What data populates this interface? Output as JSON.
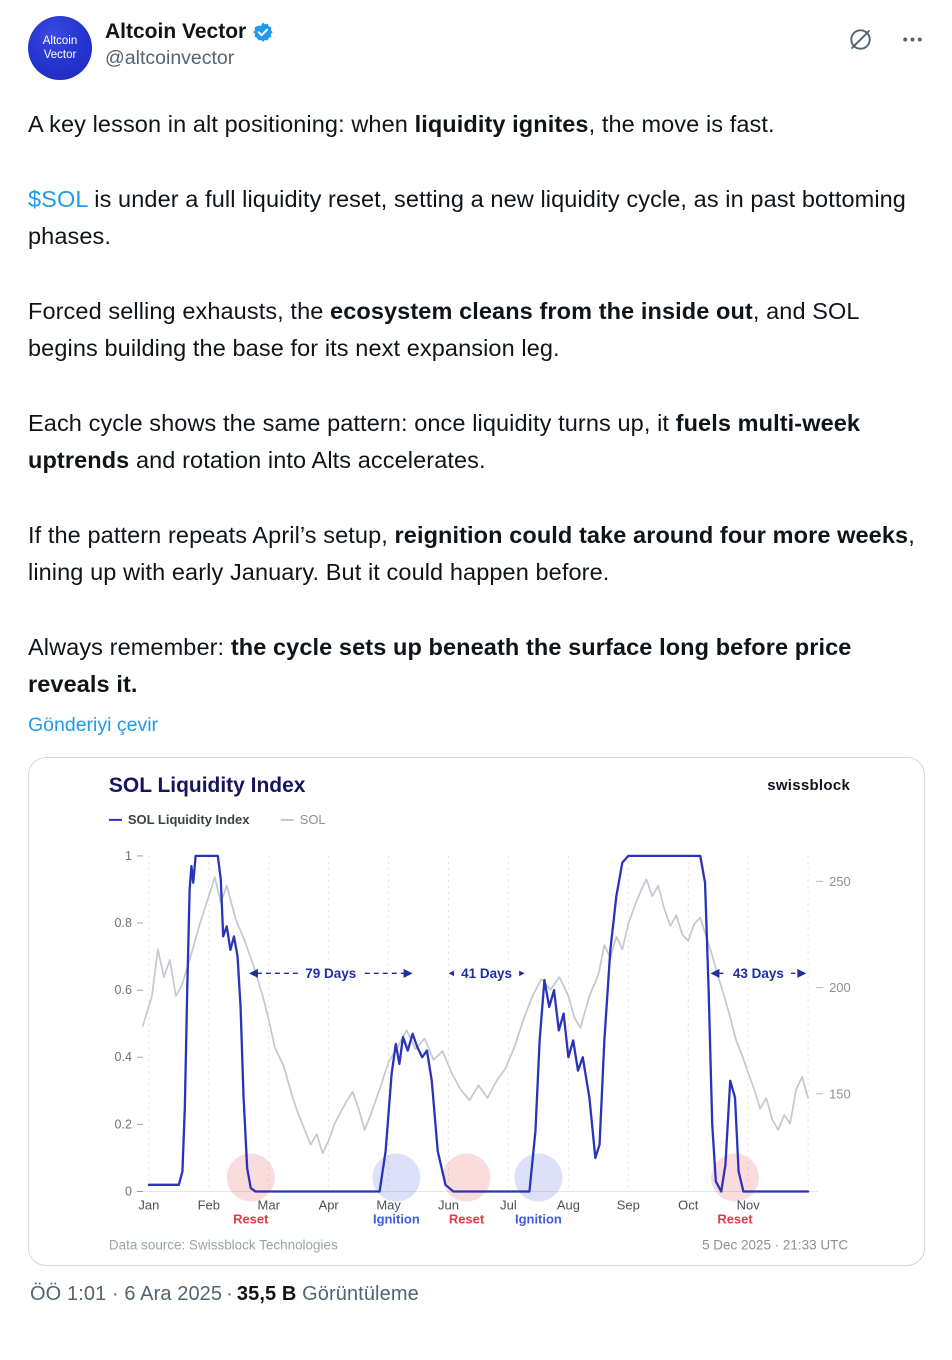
{
  "header": {
    "display_name": "Altcoin Vector",
    "handle": "@altcoinvector",
    "avatar_text_line1": "Altcoin",
    "avatar_text_line2": "Vector"
  },
  "post": {
    "paragraphs": [
      [
        {
          "t": "A key lesson in alt positioning: when "
        },
        {
          "t": "liquidity ignites",
          "b": 1
        },
        {
          "t": ", the move is fast."
        }
      ],
      [
        {
          "t": "$SOL",
          "link": 1
        },
        {
          "t": " is under a full liquidity reset, setting a new liquidity cycle, as in past bottoming phases."
        }
      ],
      [
        {
          "t": "Forced selling exhausts, the "
        },
        {
          "t": "ecosystem cleans from the inside out",
          "b": 1
        },
        {
          "t": ", and SOL begins building the base for its next expansion leg."
        }
      ],
      [
        {
          "t": "Each cycle shows the same pattern: once liquidity turns up, it "
        },
        {
          "t": "fuels multi-week uptrends",
          "b": 1
        },
        {
          "t": " and rotation into Alts accelerates."
        }
      ],
      [
        {
          "t": "If the pattern repeats April’s setup, "
        },
        {
          "t": "reignition could take around four more weeks",
          "b": 1
        },
        {
          "t": ", lining up with early January. But it could happen before."
        }
      ],
      [
        {
          "t": "Always remember: "
        },
        {
          "t": "the cycle sets up beneath the surface long before price reveals it.",
          "b": 1
        }
      ]
    ],
    "translate_link": "Gönderiyi çevir"
  },
  "chart_data": {
    "type": "line",
    "title": "SOL Liquidity Index",
    "brand": "swissblock",
    "legend": [
      "SOL Liquidity Index",
      "SOL"
    ],
    "x_axis": {
      "months": [
        "Jan",
        "Feb",
        "Mar",
        "Apr",
        "May",
        "Jun",
        "Jul",
        "Aug",
        "Sep",
        "Oct",
        "Nov"
      ]
    },
    "y_left": {
      "ticks": [
        0,
        0.2,
        0.4,
        0.6,
        0.8,
        1
      ],
      "range": [
        0,
        1
      ]
    },
    "y_right": {
      "ticks": [
        150,
        200,
        250
      ],
      "domain": [
        104,
        262
      ]
    },
    "series": [
      {
        "name": "SOL Liquidity Index",
        "axis": "left",
        "color": "#2a34b8",
        "points": [
          [
            0,
            0.02
          ],
          [
            0.5,
            0.02
          ],
          [
            0.56,
            0.06
          ],
          [
            0.6,
            0.25
          ],
          [
            0.64,
            0.6
          ],
          [
            0.68,
            0.9
          ],
          [
            0.71,
            0.97
          ],
          [
            0.74,
            0.92
          ],
          [
            0.78,
            1
          ],
          [
            1.15,
            1
          ],
          [
            1.2,
            0.93
          ],
          [
            1.24,
            0.76
          ],
          [
            1.3,
            0.79
          ],
          [
            1.36,
            0.72
          ],
          [
            1.42,
            0.76
          ],
          [
            1.48,
            0.7
          ],
          [
            1.53,
            0.55
          ],
          [
            1.58,
            0.28
          ],
          [
            1.64,
            0.07
          ],
          [
            1.7,
            0.01
          ],
          [
            1.78,
            0
          ],
          [
            3.85,
            0
          ],
          [
            3.95,
            0.12
          ],
          [
            4.05,
            0.35
          ],
          [
            4.12,
            0.44
          ],
          [
            4.18,
            0.38
          ],
          [
            4.24,
            0.46
          ],
          [
            4.32,
            0.42
          ],
          [
            4.4,
            0.47
          ],
          [
            4.48,
            0.43
          ],
          [
            4.56,
            0.4
          ],
          [
            4.64,
            0.42
          ],
          [
            4.72,
            0.33
          ],
          [
            4.82,
            0.12
          ],
          [
            4.95,
            0.02
          ],
          [
            5.08,
            0
          ],
          [
            6.35,
            0
          ],
          [
            6.45,
            0.18
          ],
          [
            6.52,
            0.45
          ],
          [
            6.6,
            0.63
          ],
          [
            6.68,
            0.55
          ],
          [
            6.76,
            0.6
          ],
          [
            6.84,
            0.48
          ],
          [
            6.92,
            0.53
          ],
          [
            7,
            0.4
          ],
          [
            7.08,
            0.45
          ],
          [
            7.16,
            0.36
          ],
          [
            7.24,
            0.4
          ],
          [
            7.35,
            0.28
          ],
          [
            7.45,
            0.1
          ],
          [
            7.52,
            0.14
          ],
          [
            7.6,
            0.45
          ],
          [
            7.7,
            0.72
          ],
          [
            7.8,
            0.88
          ],
          [
            7.9,
            0.98
          ],
          [
            8,
            1
          ],
          [
            9.2,
            1
          ],
          [
            9.28,
            0.92
          ],
          [
            9.34,
            0.6
          ],
          [
            9.4,
            0.2
          ],
          [
            9.46,
            0.03
          ],
          [
            9.55,
            0
          ],
          [
            9.62,
            0.08
          ],
          [
            9.7,
            0.33
          ],
          [
            9.78,
            0.28
          ],
          [
            9.84,
            0.06
          ],
          [
            9.92,
            0
          ],
          [
            11,
            0
          ]
        ]
      },
      {
        "name": "SOL",
        "axis": "right",
        "color": "#c3c7d1",
        "points": [
          [
            -0.1,
            182
          ],
          [
            0.05,
            196
          ],
          [
            0.15,
            218
          ],
          [
            0.25,
            205
          ],
          [
            0.35,
            213
          ],
          [
            0.45,
            196
          ],
          [
            0.55,
            201
          ],
          [
            0.7,
            215
          ],
          [
            0.85,
            230
          ],
          [
            1,
            243
          ],
          [
            1.1,
            252
          ],
          [
            1.2,
            240
          ],
          [
            1.3,
            248
          ],
          [
            1.45,
            232
          ],
          [
            1.6,
            222
          ],
          [
            1.75,
            210
          ],
          [
            1.9,
            196
          ],
          [
            2,
            185
          ],
          [
            2.1,
            172
          ],
          [
            2.25,
            163
          ],
          [
            2.4,
            148
          ],
          [
            2.5,
            140
          ],
          [
            2.6,
            133
          ],
          [
            2.7,
            126
          ],
          [
            2.8,
            131
          ],
          [
            2.9,
            122
          ],
          [
            3,
            128
          ],
          [
            3.1,
            136
          ],
          [
            3.25,
            144
          ],
          [
            3.4,
            151
          ],
          [
            3.5,
            143
          ],
          [
            3.6,
            133
          ],
          [
            3.7,
            140
          ],
          [
            3.85,
            152
          ],
          [
            4,
            165
          ],
          [
            4.15,
            172
          ],
          [
            4.3,
            180
          ],
          [
            4.45,
            171
          ],
          [
            4.6,
            176
          ],
          [
            4.75,
            166
          ],
          [
            4.9,
            170
          ],
          [
            5.05,
            160
          ],
          [
            5.2,
            152
          ],
          [
            5.35,
            147
          ],
          [
            5.5,
            154
          ],
          [
            5.65,
            148
          ],
          [
            5.8,
            156
          ],
          [
            5.95,
            162
          ],
          [
            6.1,
            172
          ],
          [
            6.25,
            185
          ],
          [
            6.4,
            196
          ],
          [
            6.55,
            204
          ],
          [
            6.7,
            199
          ],
          [
            6.85,
            205
          ],
          [
            7,
            196
          ],
          [
            7.1,
            186
          ],
          [
            7.2,
            181
          ],
          [
            7.35,
            196
          ],
          [
            7.5,
            206
          ],
          [
            7.6,
            220
          ],
          [
            7.7,
            214
          ],
          [
            7.8,
            224
          ],
          [
            7.9,
            218
          ],
          [
            8,
            230
          ],
          [
            8.1,
            238
          ],
          [
            8.2,
            245
          ],
          [
            8.3,
            251
          ],
          [
            8.4,
            243
          ],
          [
            8.5,
            248
          ],
          [
            8.6,
            237
          ],
          [
            8.7,
            229
          ],
          [
            8.8,
            234
          ],
          [
            8.9,
            225
          ],
          [
            9,
            222
          ],
          [
            9.1,
            230
          ],
          [
            9.2,
            233
          ],
          [
            9.3,
            224
          ],
          [
            9.4,
            215
          ],
          [
            9.5,
            205
          ],
          [
            9.6,
            196
          ],
          [
            9.7,
            186
          ],
          [
            9.8,
            175
          ],
          [
            9.9,
            168
          ],
          [
            10,
            160
          ],
          [
            10.1,
            152
          ],
          [
            10.2,
            143
          ],
          [
            10.3,
            148
          ],
          [
            10.4,
            138
          ],
          [
            10.5,
            133
          ],
          [
            10.6,
            140
          ],
          [
            10.7,
            136
          ],
          [
            10.8,
            152
          ],
          [
            10.9,
            158
          ],
          [
            11,
            148
          ]
        ]
      }
    ],
    "annotations": [
      {
        "label": "79 Days",
        "x_start": 1.67,
        "x_end": 4.4,
        "y": 0.65
      },
      {
        "label": "41 Days",
        "x_start": 5.0,
        "x_end": 6.27,
        "y": 0.65
      },
      {
        "label": "43 Days",
        "x_start": 9.37,
        "x_end": 10.97,
        "y": 0.65
      }
    ],
    "events": [
      {
        "label": "Reset",
        "x": 1.7,
        "color": "#e23c43"
      },
      {
        "label": "Ignition",
        "x": 4.13,
        "color": "#3d5bdc"
      },
      {
        "label": "Reset",
        "x": 5.3,
        "color": "#e23c43"
      },
      {
        "label": "Ignition",
        "x": 6.5,
        "color": "#3d5bdc"
      },
      {
        "label": "Reset",
        "x": 9.78,
        "color": "#e23c43"
      }
    ],
    "footer_left": "Data source: Swissblock Technologies",
    "footer_right": "5 Dec 2025 · 21:33 UTC",
    "colors": {
      "title": "#15155f",
      "brand": "#131320",
      "index_line": "#2a34b8",
      "sol_line": "#c3c7d1",
      "annotation": "#202f9e"
    }
  },
  "footer": {
    "time_date": "ÖÖ 1:01 · 6 Ara 2025",
    "separator": "·",
    "views_count": "35,5 B",
    "views_label": "Görüntüleme"
  }
}
